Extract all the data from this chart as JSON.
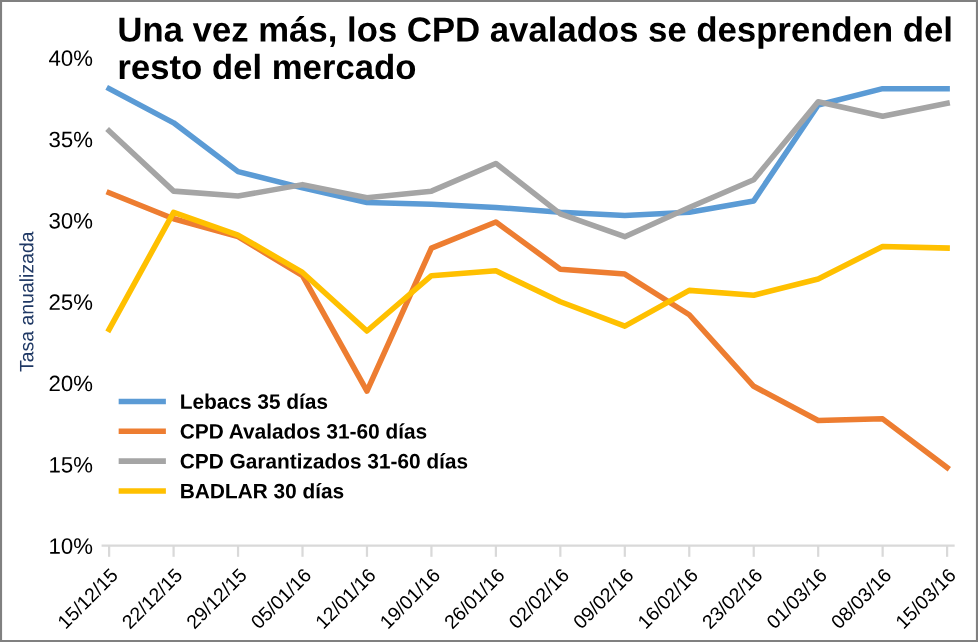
{
  "chart_data": {
    "type": "line",
    "title": "Una vez más, los CPD avalados se desprenden del resto del mercado",
    "ylabel": "Tasa anualizada",
    "categories": [
      "15/12/15",
      "22/12/15",
      "29/12/15",
      "05/01/16",
      "12/01/16",
      "19/01/16",
      "26/01/16",
      "02/02/16",
      "09/02/16",
      "16/02/16",
      "23/02/16",
      "01/03/16",
      "08/03/16",
      "15/03/16"
    ],
    "series": [
      {
        "name": "Lebacs 35 días",
        "color": "#5b9bd5",
        "values": [
          38.1,
          36.0,
          33.0,
          32.0,
          31.1,
          31.0,
          30.8,
          30.5,
          30.3,
          30.5,
          31.2,
          37.1,
          38.1,
          38.1
        ]
      },
      {
        "name": "CPD Avalados 31-60 días",
        "color": "#ed7d31",
        "values": [
          31.7,
          30.1,
          29.0,
          26.6,
          19.5,
          28.3,
          29.9,
          27.0,
          26.7,
          24.2,
          19.8,
          17.7,
          17.8,
          14.8
        ]
      },
      {
        "name": "CPD Garantizados 31-60 días",
        "color": "#a5a5a5",
        "values": [
          35.5,
          31.8,
          31.5,
          32.2,
          31.4,
          31.8,
          33.5,
          30.4,
          29.0,
          30.8,
          32.5,
          37.3,
          36.4,
          37.2
        ]
      },
      {
        "name": "BADLAR 30 días",
        "color": "#ffc000",
        "values": [
          23.3,
          30.5,
          29.1,
          26.8,
          23.2,
          26.6,
          26.9,
          25.0,
          23.5,
          25.7,
          25.4,
          26.4,
          28.4,
          28.3
        ]
      }
    ],
    "ylim": [
      10,
      40
    ],
    "yticks": [
      {
        "value": 10,
        "label": "10%"
      },
      {
        "value": 15,
        "label": "15%"
      },
      {
        "value": 20,
        "label": "20%"
      },
      {
        "value": 25,
        "label": "25%"
      },
      {
        "value": 30,
        "label": "30%"
      },
      {
        "value": 35,
        "label": "35%"
      },
      {
        "value": 40,
        "label": "40%"
      }
    ],
    "grid": false,
    "legend": "bottom left",
    "marker": "none",
    "line_style": "solid"
  }
}
